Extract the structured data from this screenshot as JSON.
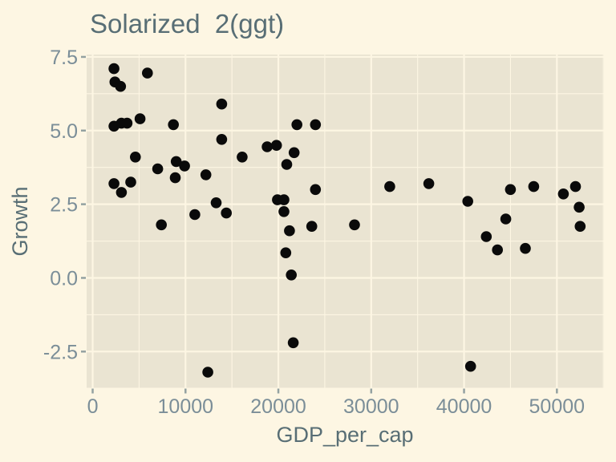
{
  "figure": {
    "title": "Solarized  2(ggt)"
  },
  "theme": {
    "background": "#fdf6e3",
    "panel_background": "#eae4d2",
    "grid_color": "#fdf6e3",
    "title_color": "#586e75",
    "axis_title_color": "#586e75",
    "tick_label_color": "#7b8e98",
    "tick_mark_color": "#93a1a1",
    "point_color": "#0a0a0a"
  },
  "chart_data": {
    "type": "scatter",
    "title": "Solarized  2(ggt)",
    "xlabel": "GDP_per_cap",
    "ylabel": "Growth",
    "legend": "none",
    "grid": "major+minor",
    "xlim": [
      -650,
      55070
    ],
    "ylim": [
      -3.73,
      7.58
    ],
    "x_ticks": [
      0,
      10000,
      20000,
      30000,
      40000,
      50000
    ],
    "x_tick_labels": [
      "0",
      "10000",
      "20000",
      "30000",
      "40000",
      "50000"
    ],
    "x_minor_ticks": [
      5000,
      15000,
      25000,
      35000,
      45000,
      55000
    ],
    "y_ticks": [
      -2.5,
      0,
      2.5,
      5,
      7.5
    ],
    "y_tick_labels": [
      "-2.5",
      "0.0",
      "2.5",
      "5.0",
      "7.5"
    ],
    "y_minor_ticks": [
      -1.25,
      1.25,
      3.75,
      6.25
    ],
    "points": [
      [
        2300,
        7.1
      ],
      [
        5900,
        6.95
      ],
      [
        2400,
        6.65
      ],
      [
        3000,
        6.5
      ],
      [
        13900,
        5.9
      ],
      [
        5100,
        5.4
      ],
      [
        2300,
        5.15
      ],
      [
        3100,
        5.25
      ],
      [
        3700,
        5.25
      ],
      [
        8700,
        5.2
      ],
      [
        13900,
        4.7
      ],
      [
        22000,
        5.2
      ],
      [
        24000,
        5.2
      ],
      [
        18800,
        4.45
      ],
      [
        19800,
        4.5
      ],
      [
        21700,
        4.25
      ],
      [
        20900,
        3.85
      ],
      [
        16100,
        4.1
      ],
      [
        4600,
        4.1
      ],
      [
        7000,
        3.7
      ],
      [
        9000,
        3.95
      ],
      [
        9900,
        3.8
      ],
      [
        8900,
        3.4
      ],
      [
        12200,
        3.5
      ],
      [
        2300,
        3.2
      ],
      [
        4100,
        3.25
      ],
      [
        3100,
        2.9
      ],
      [
        13300,
        2.55
      ],
      [
        11000,
        2.15
      ],
      [
        14400,
        2.2
      ],
      [
        7400,
        1.8
      ],
      [
        24000,
        3.0
      ],
      [
        19900,
        2.65
      ],
      [
        20600,
        2.65
      ],
      [
        20600,
        2.25
      ],
      [
        21200,
        1.6
      ],
      [
        23600,
        1.75
      ],
      [
        28200,
        1.8
      ],
      [
        20800,
        0.85
      ],
      [
        21400,
        0.1
      ],
      [
        21600,
        -2.2
      ],
      [
        12400,
        -3.2
      ],
      [
        32000,
        3.1
      ],
      [
        36200,
        3.2
      ],
      [
        40400,
        2.6
      ],
      [
        45000,
        3.0
      ],
      [
        47500,
        3.1
      ],
      [
        50700,
        2.85
      ],
      [
        52000,
        3.1
      ],
      [
        52400,
        2.4
      ],
      [
        52500,
        1.75
      ],
      [
        44500,
        2.0
      ],
      [
        42400,
        1.4
      ],
      [
        43600,
        0.95
      ],
      [
        46600,
        1.0
      ],
      [
        40700,
        -3.0
      ]
    ]
  }
}
